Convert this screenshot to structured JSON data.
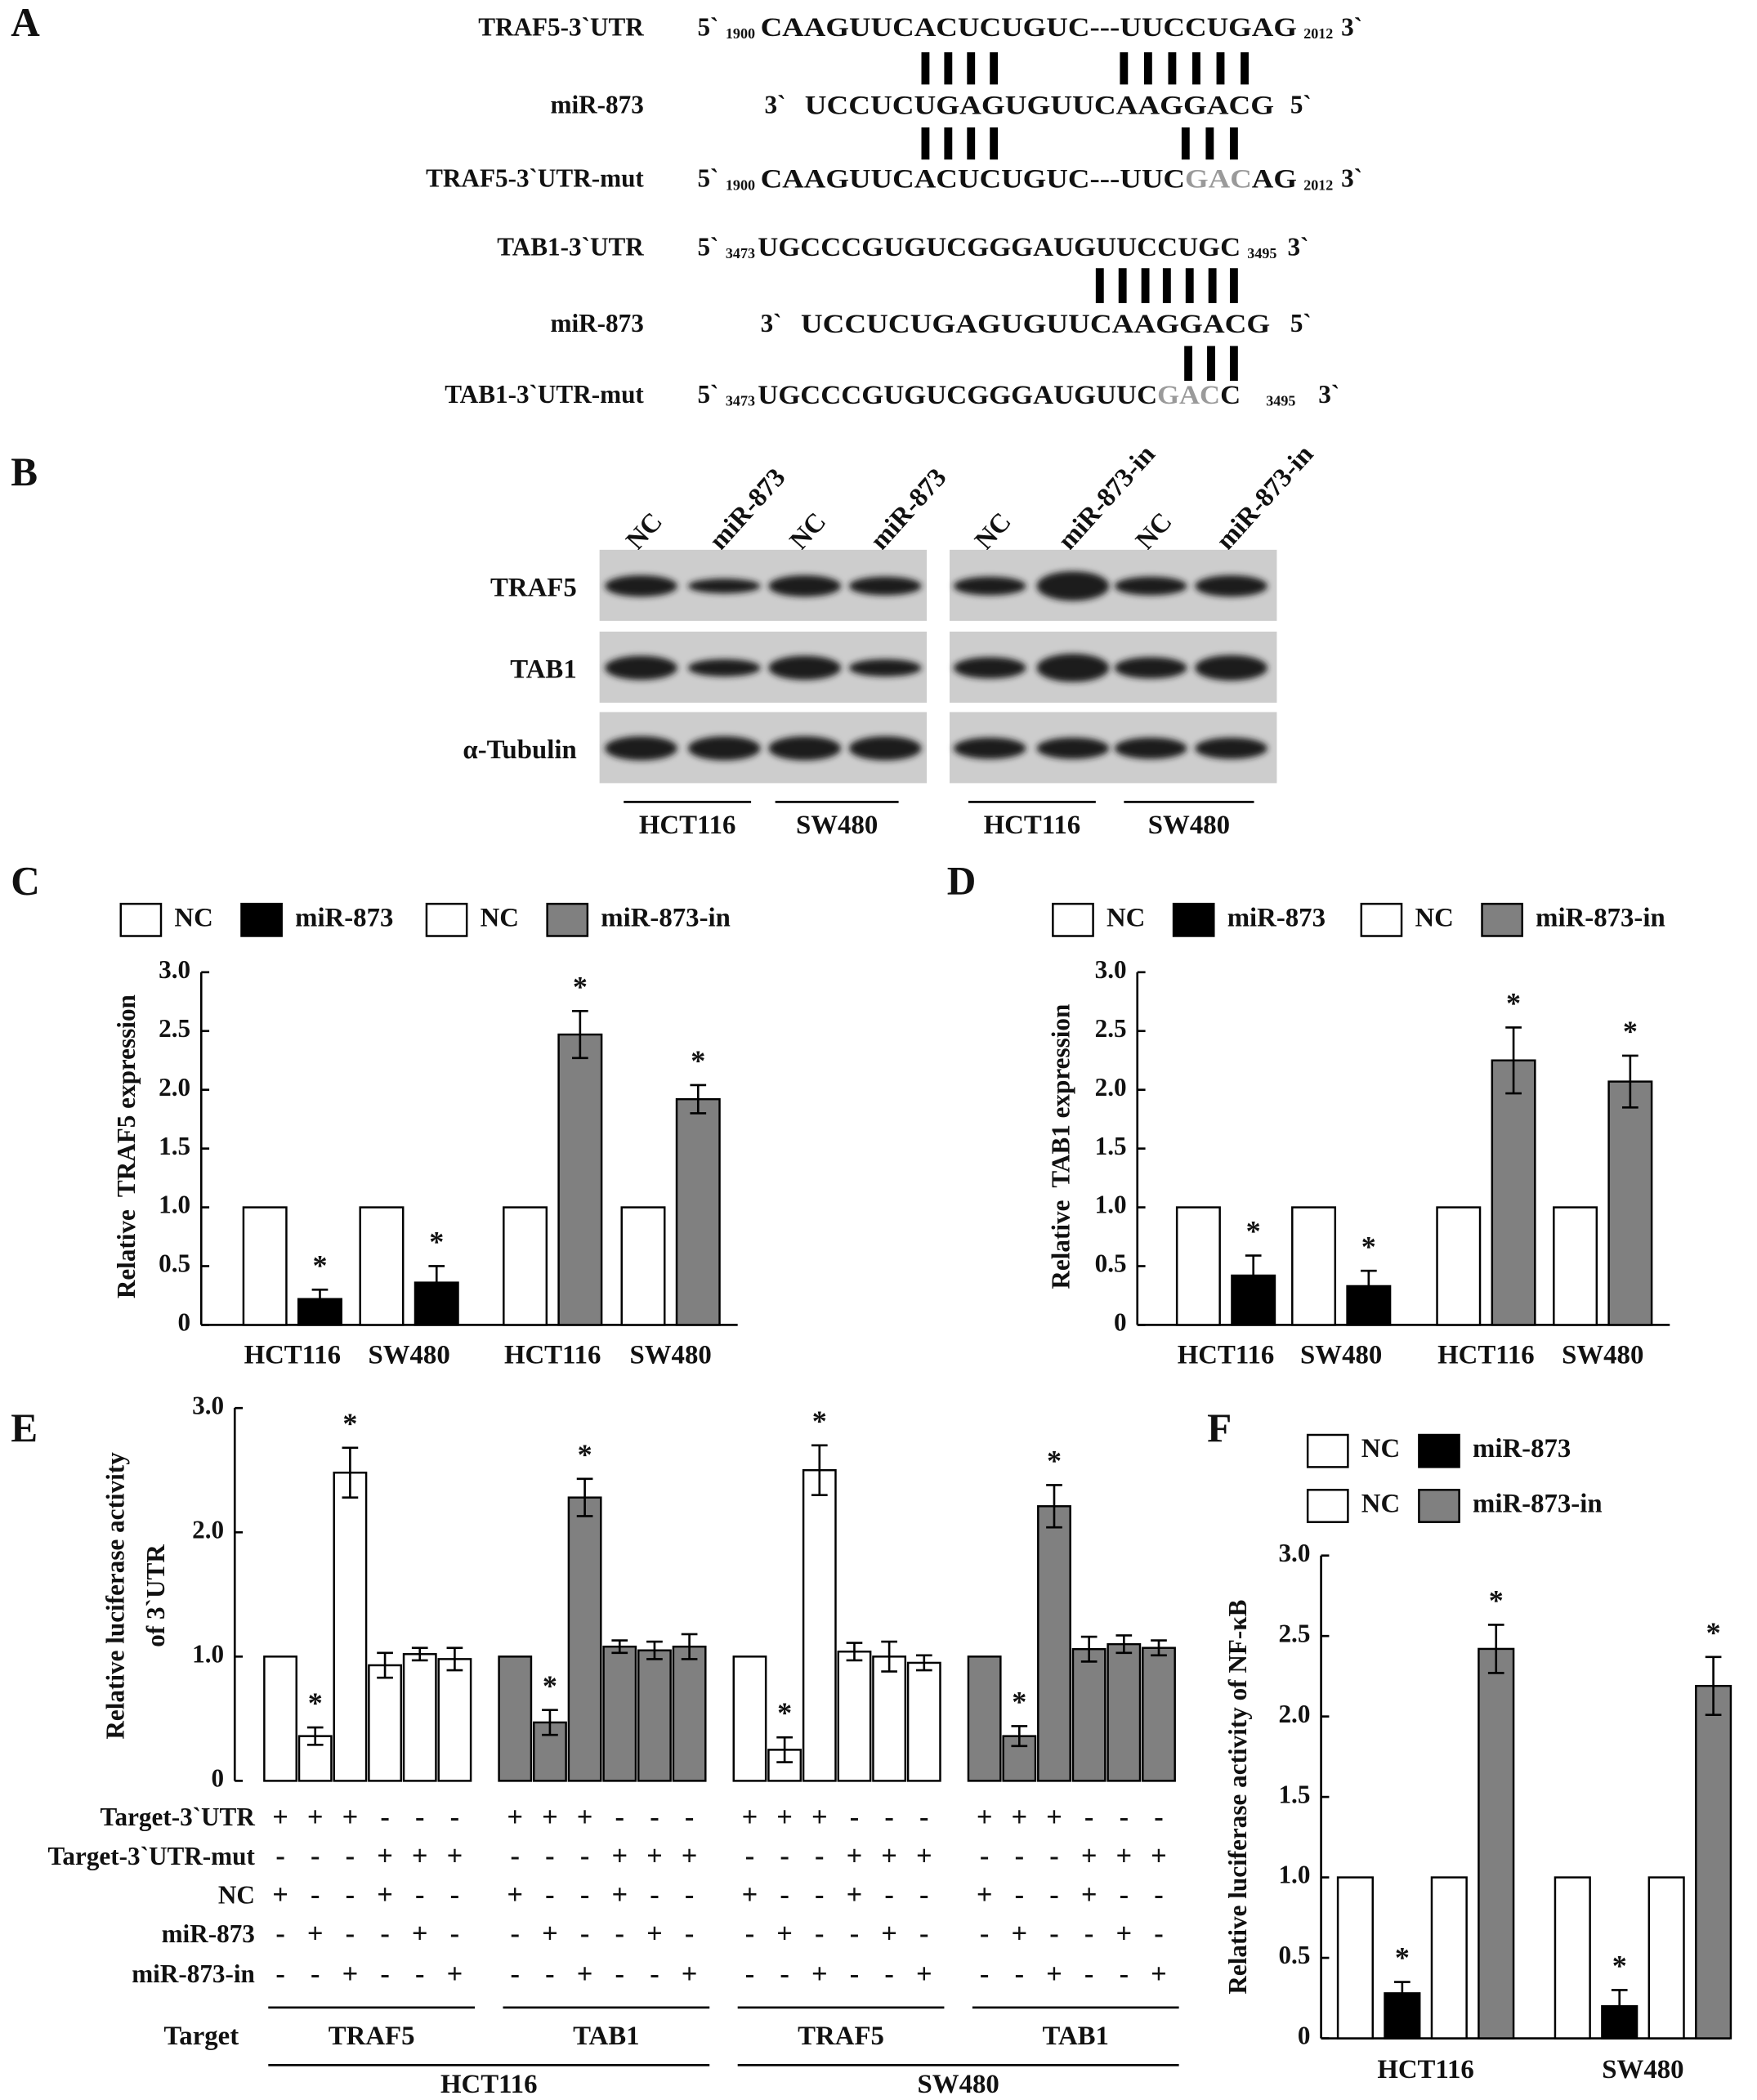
{
  "sequence_panel": {
    "label": "A",
    "rows": [
      {
        "name": "TRAF5-3`UTR",
        "left": "5`",
        "start": 1900,
        "parts": [
          {
            "text": "CAAGUUCACUCUGUC---UUCCUGAG"
          }
        ],
        "end": 2012,
        "right": "3`"
      },
      {
        "name": "miR-873",
        "left": "3`",
        "parts": [
          {
            "text": "UCCUCUGAGUGUUCAAGGACG"
          }
        ],
        "right": "5`"
      },
      {
        "name": "TRAF5-3`UTR-mut",
        "left": "5`",
        "start": 1900,
        "parts": [
          {
            "text": "CAAGUUCACUCUGUC---UUC"
          },
          {
            "text": "GAC",
            "color": "#9a9a9a"
          },
          {
            "text": "AG"
          }
        ],
        "end": 2012,
        "right": "3`"
      },
      {
        "name": "TAB1-3`UTR",
        "left": "5`",
        "start": 3473,
        "parts": [
          {
            "text": "UGCCCGUGUCGGGAUGUUCCUGC"
          }
        ],
        "end": 3495,
        "right": "3`"
      },
      {
        "name": "miR-873",
        "left": "3`",
        "parts": [
          {
            "text": "UCCUCUGAGUGUUCAAGGACG"
          }
        ],
        "right": "5`"
      },
      {
        "name": "TAB1-3`UTR-mut",
        "left": "5`",
        "start": 3473,
        "parts": [
          {
            "text": "UGCCCGUGUCGGGAUGUUC"
          },
          {
            "text": "GAC",
            "color": "#9a9a9a"
          },
          {
            "text": "C"
          }
        ],
        "end": 3495,
        "right": "3`"
      }
    ]
  },
  "blot_panel": {
    "label": "B",
    "lanes": [
      "NC",
      "miR-873",
      "NC",
      "miR-873",
      "NC",
      "miR-873-in",
      "NC",
      "miR-873-in"
    ],
    "proteins": [
      "TRAF5",
      "TAB1",
      "α-Tubulin"
    ],
    "cells": [
      "HCT116",
      "SW480",
      "HCT116",
      "SW480"
    ]
  },
  "chart_data": [
    {
      "type": "bar",
      "panel": "C",
      "ylabel": "Relative  TRAF5 expression",
      "categories": [
        "HCT116",
        "SW480",
        "HCT116",
        "SW480"
      ],
      "series": [
        {
          "name": "NC",
          "color": "#ffffff",
          "values": [
            1.0,
            1.0,
            null,
            null
          ]
        },
        {
          "name": "miR-873",
          "color": "#000000",
          "values": [
            0.22,
            0.36,
            null,
            null
          ],
          "errors": [
            0.08,
            0.14,
            null,
            null
          ],
          "annotations": [
            "*",
            "*",
            null,
            null
          ]
        },
        {
          "name": "NC",
          "color": "#ffffff",
          "values": [
            null,
            null,
            1.0,
            1.0
          ]
        },
        {
          "name": "miR-873-in",
          "color": "#808080",
          "values": [
            null,
            null,
            2.47,
            1.92
          ],
          "errors": [
            null,
            null,
            0.2,
            0.12
          ],
          "annotations": [
            null,
            null,
            "*",
            "*"
          ]
        }
      ],
      "ylim": [
        0,
        3
      ],
      "yticks": [
        0,
        0.5,
        {
          "value": 1,
          "label": "1.0"
        },
        1.5,
        {
          "value": 2,
          "label": "2.0"
        },
        2.5,
        {
          "value": 3,
          "label": "3.0"
        }
      ]
    },
    {
      "type": "bar",
      "panel": "D",
      "ylabel": "Relative  TAB1 expression",
      "categories": [
        "HCT116",
        "SW480",
        "HCT116",
        "SW480"
      ],
      "series": [
        {
          "name": "NC",
          "color": "#ffffff",
          "values": [
            1.0,
            1.0,
            null,
            null
          ]
        },
        {
          "name": "miR-873",
          "color": "#000000",
          "values": [
            0.42,
            0.33,
            null,
            null
          ],
          "errors": [
            0.17,
            0.13,
            null,
            null
          ],
          "annotations": [
            "*",
            "*",
            null,
            null
          ]
        },
        {
          "name": "NC",
          "color": "#ffffff",
          "values": [
            null,
            null,
            1.0,
            1.0
          ]
        },
        {
          "name": "miR-873-in",
          "color": "#808080",
          "values": [
            null,
            null,
            2.25,
            2.07
          ],
          "errors": [
            null,
            null,
            0.28,
            0.22
          ],
          "annotations": [
            null,
            null,
            "*",
            "*"
          ]
        }
      ],
      "ylim": [
        0,
        3
      ],
      "yticks": [
        0,
        0.5,
        {
          "value": 1,
          "label": "1.0"
        },
        1.5,
        {
          "value": 2,
          "label": "2.0"
        },
        2.5,
        {
          "value": 3,
          "label": "3.0"
        }
      ]
    },
    {
      "type": "groupedbar",
      "panel": "E",
      "ylabel": [
        "Relative luciferase activity",
        "of 3`UTR"
      ],
      "ylim": [
        0,
        3
      ],
      "yticks": [
        0,
        {
          "value": 1,
          "label": "1.0"
        },
        {
          "value": 2,
          "label": "2.0"
        },
        {
          "value": 3,
          "label": "3.0"
        }
      ],
      "row_labels": [
        "Target-3`UTR",
        "Target-3`UTR-mut",
        "NC",
        "miR-873",
        "miR-873-in"
      ],
      "target_label": "Target",
      "cells": [
        "HCT116",
        "SW480"
      ],
      "groups": [
        {
          "target": "TRAF5",
          "color": "#ffffff",
          "values": [
            1.0,
            0.36,
            2.48,
            0.93,
            1.02,
            0.98
          ],
          "errors": [
            null,
            0.07,
            0.2,
            0.1,
            0.05,
            0.09
          ],
          "annotations": [
            null,
            "*",
            "*",
            null,
            null,
            null
          ],
          "signs": [
            [
              "+",
              "+",
              "+",
              "-",
              "-",
              "-"
            ],
            [
              "-",
              "-",
              "-",
              "+",
              "+",
              "+"
            ],
            [
              "+",
              "-",
              "-",
              "+",
              "-",
              "-"
            ],
            [
              "-",
              "+",
              "-",
              "-",
              "+",
              "-"
            ],
            [
              "-",
              "-",
              "+",
              "-",
              "-",
              "+"
            ]
          ]
        },
        {
          "target": "TAB1",
          "color": "#808080",
          "values": [
            1.0,
            0.47,
            2.28,
            1.08,
            1.05,
            1.08
          ],
          "errors": [
            null,
            0.1,
            0.15,
            0.05,
            0.07,
            0.1
          ],
          "annotations": [
            null,
            "*",
            "*",
            null,
            null,
            null
          ],
          "signs": [
            [
              "+",
              "+",
              "+",
              "-",
              "-",
              "-"
            ],
            [
              "-",
              "-",
              "-",
              "+",
              "+",
              "+"
            ],
            [
              "+",
              "-",
              "-",
              "+",
              "-",
              "-"
            ],
            [
              "-",
              "+",
              "-",
              "-",
              "+",
              "-"
            ],
            [
              "-",
              "-",
              "+",
              "-",
              "-",
              "+"
            ]
          ]
        },
        {
          "target": "TRAF5",
          "color": "#ffffff",
          "values": [
            1.0,
            0.25,
            2.5,
            1.04,
            1.0,
            0.95
          ],
          "errors": [
            null,
            0.1,
            0.2,
            0.07,
            0.12,
            0.06
          ],
          "annotations": [
            null,
            "*",
            "*",
            null,
            null,
            null
          ],
          "signs": [
            [
              "+",
              "+",
              "+",
              "-",
              "-",
              "-"
            ],
            [
              "-",
              "-",
              "-",
              "+",
              "+",
              "+"
            ],
            [
              "+",
              "-",
              "-",
              "+",
              "-",
              "-"
            ],
            [
              "-",
              "+",
              "-",
              "-",
              "+",
              "-"
            ],
            [
              "-",
              "-",
              "+",
              "-",
              "-",
              "+"
            ]
          ]
        },
        {
          "target": "TAB1",
          "color": "#808080",
          "values": [
            1.0,
            0.36,
            2.21,
            1.06,
            1.1,
            1.07
          ],
          "errors": [
            null,
            0.08,
            0.17,
            0.1,
            0.07,
            0.06
          ],
          "annotations": [
            null,
            "*",
            "*",
            null,
            null,
            null
          ],
          "signs": [
            [
              "+",
              "+",
              "+",
              "-",
              "-",
              "-"
            ],
            [
              "-",
              "-",
              "-",
              "+",
              "+",
              "+"
            ],
            [
              "+",
              "-",
              "-",
              "+",
              "-",
              "-"
            ],
            [
              "-",
              "+",
              "-",
              "-",
              "+",
              "-"
            ],
            [
              "-",
              "-",
              "+",
              "-",
              "-",
              "+"
            ]
          ]
        }
      ]
    },
    {
      "type": "bar",
      "panel": "F",
      "ylabel": "Relative luciferase activity of NF-κB",
      "categories": [
        "HCT116",
        "SW480"
      ],
      "series": [
        {
          "name": "NC",
          "color": "#ffffff",
          "values": [
            1.0,
            1.0
          ]
        },
        {
          "name": "miR-873",
          "color": "#000000",
          "values": [
            0.28,
            0.2
          ],
          "errors": [
            0.07,
            0.1
          ],
          "annotations": [
            "*",
            "*"
          ]
        },
        {
          "name": "NC",
          "color": "#ffffff",
          "values": [
            1.0,
            1.0
          ]
        },
        {
          "name": "miR-873-in",
          "color": "#808080",
          "values": [
            2.42,
            2.19
          ],
          "errors": [
            0.15,
            0.18
          ],
          "annotations": [
            "*",
            "*"
          ]
        }
      ],
      "ylim": [
        0,
        3
      ],
      "yticks": [
        0,
        0.5,
        {
          "value": 1,
          "label": "1.0"
        },
        1.5,
        {
          "value": 2,
          "label": "2.0"
        },
        2.5,
        {
          "value": 3,
          "label": "3.0"
        }
      ]
    }
  ]
}
